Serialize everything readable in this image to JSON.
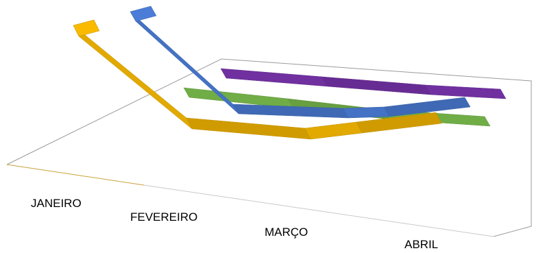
{
  "chart_data": {
    "type": "line",
    "variant": "3d-ribbon",
    "categories": [
      "JANEIRO",
      "FEVEREIRO",
      "MARÇO",
      "ABRIL"
    ],
    "series": [
      {
        "color": "#7030A0",
        "values": [
          null,
          0,
          0,
          0
        ]
      },
      {
        "color": "#70AD47",
        "values": [
          null,
          0,
          0,
          0
        ]
      },
      {
        "color": "#4472C4",
        "values": [
          100,
          0,
          0,
          0
        ]
      },
      {
        "color": "#E2A900",
        "values": [
          100,
          0,
          0,
          0
        ]
      }
    ],
    "grid": false,
    "legend": "none"
  }
}
